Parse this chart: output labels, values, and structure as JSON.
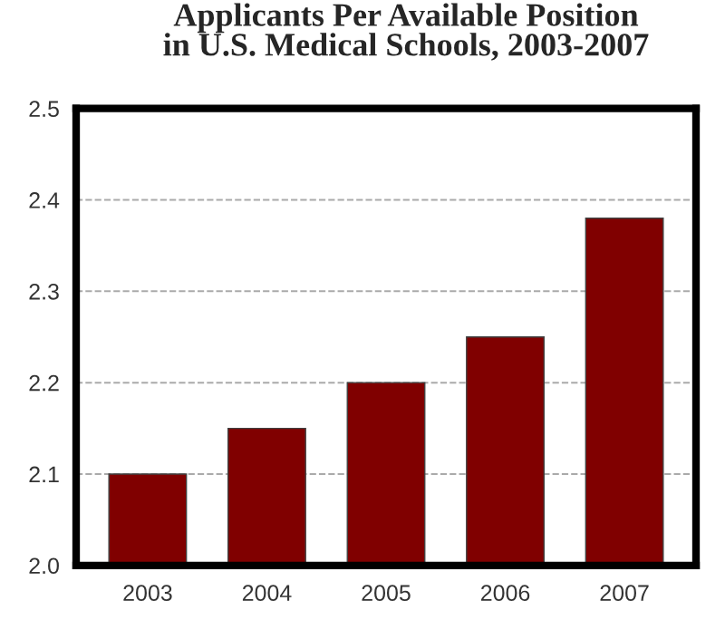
{
  "chart_data": {
    "type": "bar",
    "title": "Applicants Per Available Position\nin U.S. Medical Schools, 2003-2007",
    "categories": [
      "2003",
      "2004",
      "2005",
      "2006",
      "2007"
    ],
    "values": [
      2.1,
      2.15,
      2.2,
      2.25,
      2.38
    ],
    "color": "#800000",
    "ylim": [
      2.0,
      2.5
    ],
    "yticks": [
      {
        "value": 2.0,
        "label": "2.0"
      },
      {
        "value": 2.1,
        "label": "2.1"
      },
      {
        "value": 2.2,
        "label": "2.2"
      },
      {
        "value": 2.3,
        "label": "2.3"
      },
      {
        "value": 2.4,
        "label": "2.4"
      },
      {
        "value": 2.5,
        "label": "2.5"
      }
    ],
    "grid": "y"
  }
}
